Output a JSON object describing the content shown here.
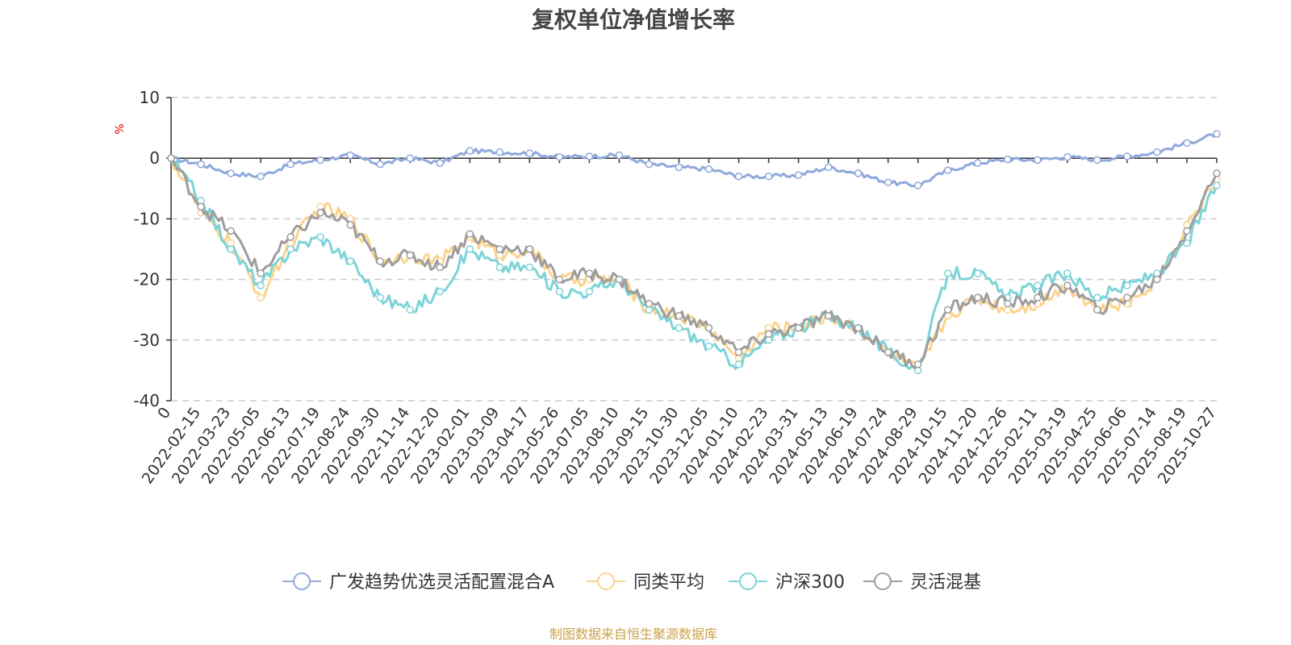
{
  "chart_data": {
    "type": "line",
    "title": "复权单位净值增长率",
    "ylabel": "%",
    "ylim": [
      -40,
      10
    ],
    "yticks": [
      10,
      0,
      -10,
      -20,
      -30,
      -40
    ],
    "x_start_label": "0",
    "categories": [
      "0",
      "2022-02-15",
      "2022-03-23",
      "2022-05-05",
      "2022-06-13",
      "2022-07-19",
      "2022-08-24",
      "2022-09-30",
      "2022-11-14",
      "2022-12-20",
      "2023-02-01",
      "2023-03-09",
      "2023-04-17",
      "2023-05-26",
      "2023-07-05",
      "2023-08-10",
      "2023-09-15",
      "2023-10-30",
      "2023-12-05",
      "2024-01-10",
      "2024-02-23",
      "2024-03-31",
      "2024-05-13",
      "2024-06-19",
      "2024-07-24",
      "2024-08-29",
      "2024-10-15",
      "2024-11-20",
      "2024-12-26",
      "2025-02-11",
      "2025-03-19",
      "2025-04-25",
      "2025-06-06",
      "2025-07-14",
      "2025-08-19",
      "2025-10-27"
    ],
    "series": [
      {
        "name": "广发趋势优选灵活配置混合A",
        "color": "#8fa9db",
        "values": [
          0,
          -1,
          -2.5,
          -3,
          -1,
          -0.3,
          0.5,
          -1,
          0,
          -0.8,
          1.2,
          1,
          0.8,
          0.2,
          0.3,
          0.5,
          -1,
          -1.5,
          -1.8,
          -3,
          -3,
          -2.8,
          -1.5,
          -2.5,
          -4,
          -4.5,
          -2,
          -0.8,
          -0.2,
          -0.3,
          0.2,
          -0.3,
          0.3,
          1,
          2.5,
          4
        ]
      },
      {
        "name": "同类平均",
        "color": "#fbd38d",
        "values": [
          0,
          -9,
          -14,
          -23,
          -14,
          -8,
          -10,
          -17,
          -16,
          -17,
          -13,
          -16,
          -15,
          -20,
          -20,
          -20,
          -25,
          -26,
          -28,
          -33,
          -28,
          -28,
          -26,
          -28,
          -32,
          -35,
          -26,
          -23,
          -25,
          -24,
          -21,
          -25,
          -24,
          -20,
          -11,
          -3.5
        ]
      },
      {
        "name": "沪深300",
        "color": "#7dd3d8",
        "values": [
          0,
          -7,
          -15,
          -21,
          -15,
          -13,
          -17,
          -23,
          -25,
          -22,
          -15,
          -18,
          -18,
          -22,
          -22,
          -20,
          -25,
          -28,
          -31,
          -34,
          -30,
          -28,
          -26,
          -28,
          -32,
          -35,
          -19,
          -19,
          -23,
          -21,
          -19,
          -23,
          -21,
          -19,
          -14,
          -4.5
        ]
      },
      {
        "name": "灵活混基",
        "color": "#9e9e9e",
        "values": [
          0,
          -8,
          -12,
          -19,
          -13,
          -9,
          -11,
          -17,
          -16,
          -18,
          -12.5,
          -15,
          -15,
          -20,
          -19,
          -20,
          -24,
          -26,
          -28,
          -32,
          -29,
          -28,
          -26,
          -28,
          -32,
          -34,
          -25,
          -23,
          -24,
          -23,
          -21,
          -25,
          -23,
          -20,
          -12,
          -2.5
        ]
      }
    ]
  },
  "source_text": "制图数据来自恒生聚源数据库"
}
